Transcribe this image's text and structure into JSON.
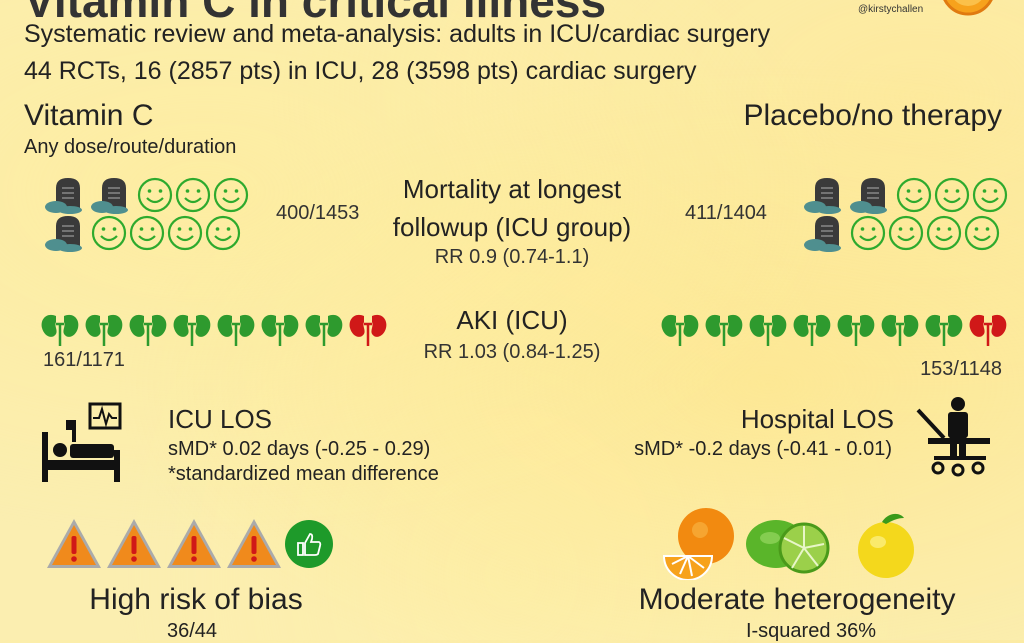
{
  "header": {
    "title": "Vitamin C in critical illness",
    "handle": "@kirstychallen",
    "subtitle_1": "Systematic review and meta-analysis: adults in ICU/cardiac surgery",
    "subtitle_2": "44 RCTs, 16 (2857 pts) in ICU, 28 (3598 pts) cardiac surgery"
  },
  "arms": {
    "left_title": "Vitamin C",
    "left_sub": "Any dose/route/duration",
    "right_title": "Placebo/no therapy"
  },
  "mortality": {
    "label_line1": "Mortality at longest",
    "label_line2": "followup (ICU group)",
    "rr": "RR 0.9 (0.74-1.1)",
    "left_count": "400/1453",
    "right_count": "411/1404"
  },
  "aki": {
    "label": "AKI (ICU)",
    "rr": "RR 1.03 (0.84-1.25)",
    "left_count": "161/1171",
    "right_count": "153/1148"
  },
  "icu_los": {
    "label": "ICU LOS",
    "value": "sMD* 0.02 days (-0.25 - 0.29)",
    "note": "*standardized mean difference"
  },
  "hospital_los": {
    "label": "Hospital LOS",
    "value": "sMD* -0.2 days (-0.41 - 0.01)"
  },
  "bias": {
    "label": "High risk of bias",
    "count": "36/44"
  },
  "heterogeneity": {
    "label": "Moderate heterogeneity",
    "value": "I-squared 36%"
  },
  "colors": {
    "face_green": "#2eaa2e",
    "tomb_dark": "#3a3a3a",
    "kidney_green": "#2e9a2e",
    "kidney_red": "#d01818",
    "warning_orange": "#f08a1c",
    "thumb_green": "#1e9a2a"
  }
}
